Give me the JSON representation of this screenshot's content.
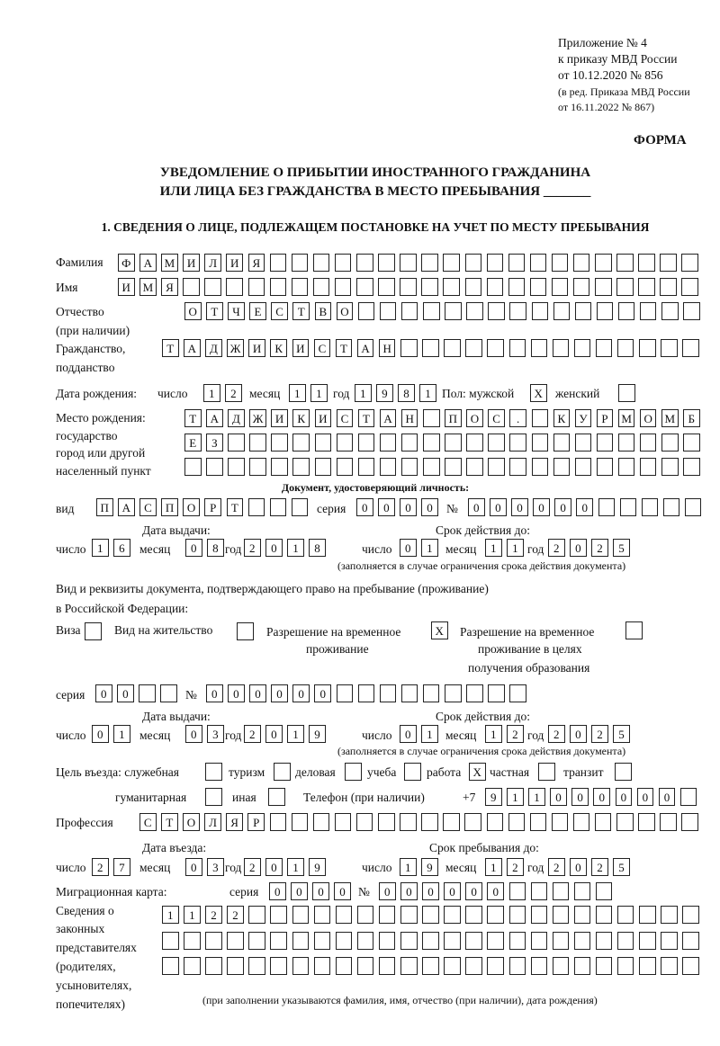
{
  "header": {
    "appendix": "Приложение № 4",
    "order": "к приказу МВД России",
    "order_date": "от 10.12.2020 № 856",
    "edition_1": "(в ред. Приказа МВД России",
    "edition_2": "от 16.11.2022 № 867)",
    "form_label": "ФОРМА"
  },
  "title": {
    "line1": "УВЕДОМЛЕНИЕ О ПРИБЫТИИ ИНОСТРАННОГО ГРАЖДАНИНА",
    "line2": "ИЛИ ЛИЦА БЕЗ ГРАЖДАНСТВА В МЕСТО ПРЕБЫВАНИЯ _______"
  },
  "section1": {
    "heading": "1. СВЕДЕНИЯ О ЛИЦЕ, ПОДЛЕЖАЩЕМ ПОСТАНОВКЕ НА УЧЕТ ПО МЕСТУ ПРЕБЫВАНИЯ",
    "labels": {
      "surname": "Фамилия",
      "name": "Имя",
      "patronymic_1": "Отчество",
      "patronymic_2": "(при наличии)",
      "citizenship_1": "Гражданство,",
      "citizenship_2": "подданство",
      "birth_date": "Дата рождения:",
      "day": "число",
      "month": "месяц",
      "year": "год",
      "sex": "Пол: мужской",
      "female": "женский",
      "birthplace_1": "Место рождения:",
      "birthplace_2": "государство",
      "birthplace_3": "город или другой",
      "birthplace_4": "населенный пункт",
      "id_doc": "Документ, удостоверяющий личность:",
      "kind": "вид",
      "series": "серия",
      "number": "№",
      "issue_date": "Дата выдачи:",
      "valid_until": "Срок действия до:",
      "valid_note": "(заполняется в случае ограничения срока действия документа)",
      "stay_doc_1": "Вид и реквизиты документа, подтверждающего право на пребывание (проживание)",
      "stay_doc_2": "в Российской Федерации:",
      "visa": "Виза",
      "residence": "Вид на жительство",
      "trp_1": "Разрешение на временное",
      "trp_2": "проживание",
      "trp_edu_1": "Разрешение на временное",
      "trp_edu_2": "проживание в целях",
      "trp_edu_3": "получения образования",
      "purpose": "Цель въезда: служебная",
      "tourism": "туризм",
      "business": "деловая",
      "study": "учеба",
      "work": "работа",
      "private": "частная",
      "transit": "транзит",
      "humanitarian": "гуманитарная",
      "other": "иная",
      "phone": "Телефон (при наличии)",
      "phone_prefix": "+7",
      "profession": "Профессия",
      "entry_date": "Дата въезда:",
      "stay_until": "Срок пребывания до:",
      "migration_card": "Миграционная карта:",
      "reps_1": "Сведения о",
      "reps_2": "законных",
      "reps_3": "представителях",
      "reps_4": "(родителях,",
      "reps_5": "усыновителях,",
      "reps_6": "попечителях)",
      "reps_note": "(при заполнении указываются фамилия, имя, отчество (при наличии), дата рождения)"
    },
    "values": {
      "surname": "ФАМИЛИЯ",
      "name": "ИМЯ",
      "patronymic": "ОТЧЕСТВО",
      "citizenship": "ТАДЖИКИСТАН",
      "birth_day": "12",
      "birth_month": "11",
      "birth_year": "1981",
      "male": "X",
      "female": "",
      "birthplace_1": "ТАДЖИКИСТАН ПОС. КУРМОМБ",
      "birthplace_2": "ЕЗ",
      "birthplace_3": "",
      "id_kind": "ПАСПОРТ",
      "id_series": "0000",
      "id_number": "000000",
      "id_issue_day": "16",
      "id_issue_month": "08",
      "id_issue_year": "2018",
      "id_valid_day": "01",
      "id_valid_month": "11",
      "id_valid_year": "2025",
      "visa": "",
      "residence": "",
      "trp": "X",
      "trp_edu": "",
      "stay_series": "00",
      "stay_number": "000000",
      "stay_issue_day": "01",
      "stay_issue_month": "03",
      "stay_issue_year": "2019",
      "stay_valid_day": "01",
      "stay_valid_month": "12",
      "stay_valid_year": "2025",
      "purpose_service": "",
      "purpose_tourism": "",
      "purpose_business": "",
      "purpose_study": "",
      "purpose_work": "X",
      "purpose_private": "",
      "purpose_transit": "",
      "purpose_humanitarian": "",
      "purpose_other": "",
      "phone": "911000000",
      "profession": "СТОЛЯР",
      "entry_day": "27",
      "entry_month": "03",
      "entry_year": "2019",
      "stay_until_day": "19",
      "stay_until_month": "12",
      "stay_until_year": "2025",
      "mc_series": "0000",
      "mc_number": "000000",
      "reps_1": "1122",
      "reps_2": "",
      "reps_3": ""
    }
  }
}
